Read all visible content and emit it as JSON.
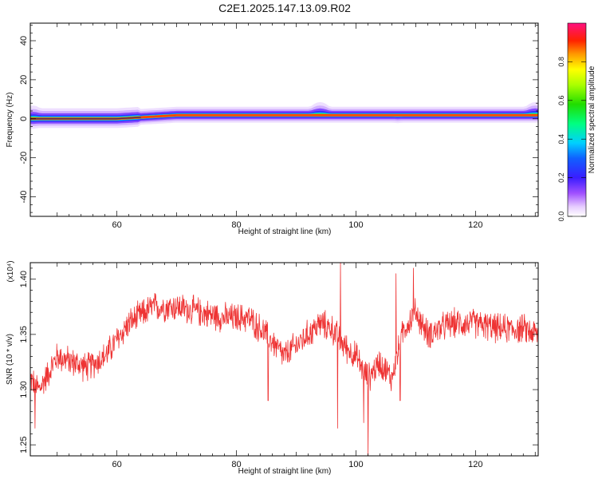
{
  "title": "C2E1.2025.147.13.09.R02",
  "chart_data": [
    {
      "type": "heatmap",
      "xlabel": "Height of straight line (km)",
      "ylabel": "Frequency (Hz)",
      "xlim": [
        45.5,
        130.5
      ],
      "ylim": [
        -50,
        49
      ],
      "xticks": [
        60,
        80,
        100,
        120
      ],
      "yticks": [
        -40,
        -20,
        0,
        20,
        40
      ],
      "band": {
        "center_hz_start": 0,
        "center_hz_end": 1.8,
        "core_halfwidth_hz": 0.7,
        "envelope_halfwidth_hz": 4,
        "envelope_bumps": [
          {
            "x": 46,
            "hz_max": 4,
            "hz_min": -3
          },
          {
            "x": 94,
            "hz_max": 5,
            "hz_min": -1
          },
          {
            "x": 107,
            "hz_max": 3,
            "hz_min": -3
          },
          {
            "x": 130,
            "hz_max": 5,
            "hz_min": -1
          }
        ]
      },
      "colorbar": {
        "label": "Normalized spectral amplitude",
        "ticks": [
          "0.0",
          "0.2",
          "0.4",
          "0.6",
          "0.8"
        ],
        "range": [
          0,
          1
        ]
      },
      "grid": false
    },
    {
      "type": "line",
      "xlabel": "Height of straight line (km)",
      "ylabel": "SNR (10 * v/v)",
      "y_multiplier": "(x10⁴)",
      "xlim": [
        45.5,
        130.5
      ],
      "ylim": [
        1.24,
        1.415
      ],
      "xticks": [
        60,
        80,
        100,
        120
      ],
      "yticks": [
        "1.25",
        "1.30",
        "1.35",
        "1.40"
      ],
      "series": [
        {
          "color": "#ee3333",
          "trend_x": [
            45.5,
            47,
            50,
            55,
            58,
            62,
            66,
            70,
            74,
            78,
            82,
            85,
            88,
            91,
            94,
            96,
            98,
            100,
            102,
            104,
            106,
            108,
            110,
            112,
            116,
            120,
            124,
            128,
            130.5
          ],
          "trend_y": [
            1.31,
            1.3,
            1.33,
            1.32,
            1.33,
            1.36,
            1.375,
            1.375,
            1.37,
            1.365,
            1.365,
            1.35,
            1.33,
            1.345,
            1.36,
            1.355,
            1.34,
            1.33,
            1.31,
            1.325,
            1.31,
            1.355,
            1.37,
            1.35,
            1.36,
            1.36,
            1.355,
            1.355,
            1.35
          ],
          "noise_amplitude": 0.013,
          "spikes": [
            {
              "x": 97.4,
              "y": 1.415
            },
            {
              "x": 96.9,
              "y": 1.265
            },
            {
              "x": 102.0,
              "y": 1.24
            },
            {
              "x": 101.3,
              "y": 1.27
            },
            {
              "x": 106.7,
              "y": 1.405
            },
            {
              "x": 109.6,
              "y": 1.41
            },
            {
              "x": 107.4,
              "y": 1.29
            },
            {
              "x": 85.3,
              "y": 1.29
            },
            {
              "x": 46.3,
              "y": 1.265
            }
          ]
        }
      ],
      "grid": false
    }
  ]
}
